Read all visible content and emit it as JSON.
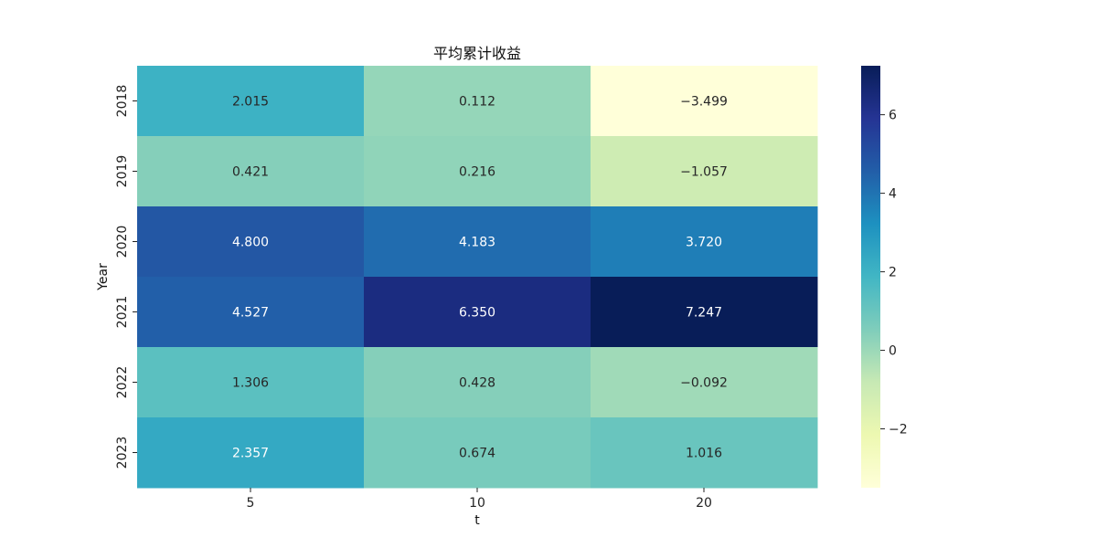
{
  "chart_data": {
    "type": "heatmap",
    "title": "平均累计收益",
    "xlabel": "t",
    "ylabel": "Year",
    "x_categories": [
      "5",
      "10",
      "20"
    ],
    "y_categories": [
      "2018",
      "2019",
      "2020",
      "2021",
      "2022",
      "2023"
    ],
    "values": [
      [
        2.015,
        0.112,
        -3.499
      ],
      [
        0.421,
        0.216,
        -1.057
      ],
      [
        4.8,
        4.183,
        3.72
      ],
      [
        4.527,
        6.35,
        7.247
      ],
      [
        1.306,
        0.428,
        -0.092
      ],
      [
        2.357,
        0.674,
        1.016
      ]
    ],
    "value_format": "%.3f",
    "colormap": "YlGnBu",
    "colorbar": {
      "range": [
        -3.499,
        7.247
      ],
      "ticks": [
        -2,
        0,
        2,
        4,
        6
      ]
    }
  }
}
